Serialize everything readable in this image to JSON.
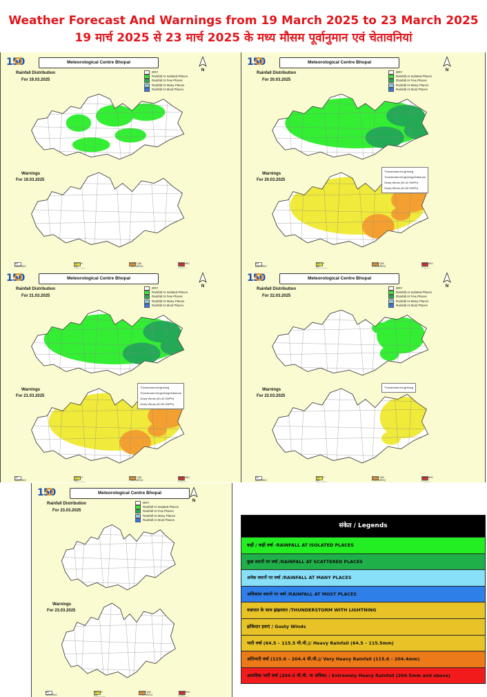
{
  "header": {
    "title_en": "Weather Forecast And Warnings from 19 March 2025 to 23 March 2025",
    "title_hi": "19 मार्च 2025 से 23 मार्च 2025 के मध्य मौसम पूर्वानुमान एवं चेतावनियां"
  },
  "common": {
    "centre": "Meteorological Centre Bhopal",
    "logo_text": "150",
    "north": "N",
    "rain_legend": [
      "DRY",
      "Rainfall At Isolated Places",
      "Rainfall At Few Places",
      "Rainfall At Many Places",
      "Rainfall At Most Places"
    ],
    "warn_legend_footer": [
      "NO WARNING",
      "WATCH (BE UPDATED)",
      "ALERT (BE PREPARED)",
      "WARNING (TAKE ACTION)"
    ],
    "colors": {
      "dry": "#ffffff",
      "isolated": "#33ee33",
      "few": "#22aa55",
      "many": "#88ccff",
      "most": "#3377ee",
      "watch": "#f0ea3a",
      "alert": "#f4a030",
      "warning": "#e53030",
      "panel_bg": "#fbfbd2"
    }
  },
  "panels": [
    {
      "rain_title": "Rainfall Distribution",
      "rain_date": "For 19.03.2025",
      "warn_title": "Warnings",
      "warn_date": "For 19.03.2025",
      "warn_box": [],
      "rain_level": "isolated",
      "warn_level": "none"
    },
    {
      "rain_title": "Rainfall Distribution",
      "rain_date": "For 20.03.2025",
      "warn_title": "Warnings",
      "warn_date": "For 20.03.2025",
      "warn_box": [
        "Thunderstorm/Lightning",
        "Thunderstorm/Lightning/Hailstorm",
        "Gusty Winds (30-40 KMPH)",
        "Gusty Winds (40-50 KMPH)"
      ],
      "rain_level": "few",
      "warn_level": "watch-alert"
    },
    {
      "rain_title": "Rainfall Distribution",
      "rain_date": "For 21.03.2025",
      "warn_title": "Warnings",
      "warn_date": "For 21.03.2025",
      "warn_box": [
        "Thunderstorm/Lightning",
        "Thunderstorm/Lightning/Hailstorm",
        "Gusty Winds (30-40 KMPH)",
        "Gusty Winds (40-50 KMPH)"
      ],
      "rain_level": "few",
      "warn_level": "watch-alert"
    },
    {
      "rain_title": "Rainfall Distribution",
      "rain_date": "For 22.03.2025",
      "warn_title": "Warnings",
      "warn_date": "For 22.03.2025",
      "warn_box": [
        "Thunderstorm/Lightning"
      ],
      "rain_level": "isolated-east",
      "warn_level": "watch-east"
    },
    {
      "rain_title": "Rainfall Distribution",
      "rain_date": "For 23.03.2025",
      "warn_title": "Warnings",
      "warn_date": "For 23.03.2025",
      "warn_box": [],
      "rain_level": "none",
      "warn_level": "none"
    }
  ],
  "legend": {
    "title": "संकेत / Legends",
    "rows": [
      {
        "text": "कहीं / कहीं वर्षा -RAINFALL AT ISOLATED PLACES",
        "color": "#22ee22"
      },
      {
        "text": "कुछ स्थानों पर वर्षा /RAINFALL AT SCATTERED PLACES",
        "color": "#20b04a"
      },
      {
        "text": "अनेक स्थानों पर वर्षा /RAINFALL AT MANY PLACES",
        "color": "#88e0f8"
      },
      {
        "text": "अधिकांश स्थानों पर वर्षा /RAINFALL AT MOST PLACES",
        "color": "#2f7fe8"
      },
      {
        "text": "वज्रपात के साथ झंझावात /THUNDERSTORM WITH LIGHTNING",
        "color": "#e8c328"
      },
      {
        "text": "झोंकेदार हवाएं / Gusty Winds",
        "color": "#e8c328"
      },
      {
        "text": "भारी वर्षा (64.5 – 115.5 मी.मी.)/ Heavy Rainfall (64.5 – 115.5mm)",
        "color": "#e8c328"
      },
      {
        "text": "अतिभारी वर्षा (115.6 – 204.4 मी.मी.)/ Very Heavy Rainfall (115.6 – 204.4mm)",
        "color": "#ec7a18"
      },
      {
        "text": "अत्यधिक भारी वर्षा (204.5 मी.मी. या अधिक) / Extremely Heavy Rainfall (204.5mm and above)",
        "color": "#f21b1b"
      }
    ]
  }
}
